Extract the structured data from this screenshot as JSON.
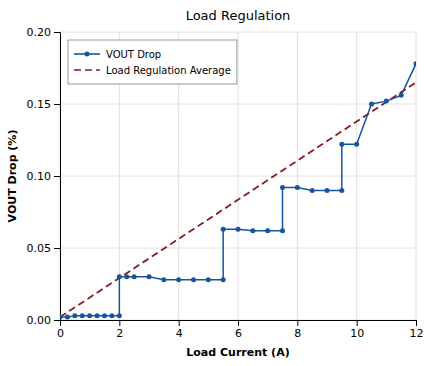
{
  "chart_data": {
    "type": "line",
    "title": "Load Regulation",
    "xlabel": "Load Current (A)",
    "ylabel": "VOUT Drop (%)",
    "xlim": [
      0,
      12
    ],
    "ylim": [
      0,
      0.2
    ],
    "xticks": [
      0,
      2,
      4,
      6,
      8,
      10,
      12
    ],
    "yticks": [
      {
        "value": 0.0,
        "label": "0.00"
      },
      0.05,
      {
        "value": 0.1,
        "label": "0.10"
      },
      0.15,
      {
        "value": 0.2,
        "label": "0.20"
      }
    ],
    "grid": true,
    "legend": "upper left",
    "series": [
      {
        "name": "VOUT Drop",
        "color": "#1555a0",
        "marker": "circle",
        "line_style": "solid",
        "x": [
          0,
          0.25,
          0.5,
          0.75,
          1.0,
          1.25,
          1.5,
          1.75,
          2.0,
          2.0,
          2.25,
          2.5,
          3.0,
          3.5,
          4.0,
          4.5,
          5.0,
          5.5,
          5.5,
          6.0,
          6.5,
          7.0,
          7.5,
          7.5,
          8.0,
          8.5,
          9.0,
          9.5,
          9.5,
          10.0,
          10.5,
          11.0,
          11.5,
          12.0
        ],
        "values": [
          0.002,
          0.002,
          0.003,
          0.003,
          0.003,
          0.003,
          0.003,
          0.003,
          0.003,
          0.03,
          0.03,
          0.03,
          0.03,
          0.028,
          0.028,
          0.028,
          0.028,
          0.028,
          0.063,
          0.063,
          0.062,
          0.062,
          0.062,
          0.092,
          0.092,
          0.09,
          0.09,
          0.09,
          0.122,
          0.122,
          0.15,
          0.152,
          0.156,
          0.178
        ]
      },
      {
        "name": "Load Regulation Average",
        "color": "#8b1a1a",
        "line_style": "dashed",
        "x": [
          0,
          12
        ],
        "values": [
          0.002,
          0.165
        ]
      }
    ]
  }
}
